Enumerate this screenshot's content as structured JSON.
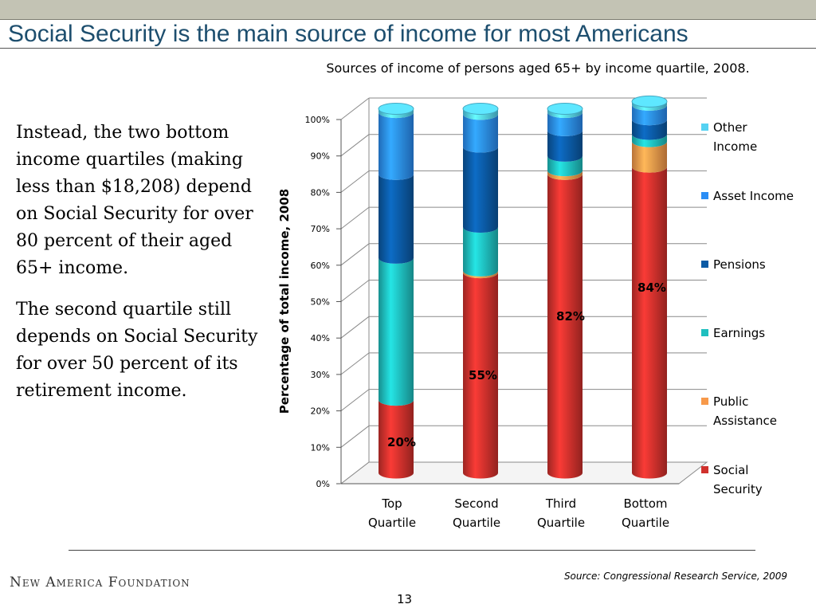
{
  "slide": {
    "title": "Social Security is the main source of income for most Americans",
    "paragraphs": [
      "Instead, the two bottom income quartiles (making less than $18,208) depend on Social Security for over 80 percent of their aged 65+ income.",
      "The second quartile still depends on Social Security for over 50 percent of its retirement income."
    ],
    "org_name": "New America Foundation",
    "source": "Source:  Congressional Research Service,  2009",
    "page_number": "13"
  },
  "chart_data": {
    "type": "bar",
    "stacked": true,
    "title": "Sources of income of persons aged 65+ by income quartile, 2008.",
    "ylabel": "Percentage of total income, 2008",
    "xlabel": "",
    "ylim": [
      0,
      100
    ],
    "yticks": [
      "0%",
      "10%",
      "20%",
      "30%",
      "40%",
      "50%",
      "60%",
      "70%",
      "80%",
      "90%",
      "100%"
    ],
    "categories": [
      "Top Quartile",
      "Second Quartile",
      "Third Quartile",
      "Bottom Quartile"
    ],
    "legend_position": "right",
    "series": [
      {
        "name": "Social Security",
        "color": "#d0312d",
        "values": [
          20,
          55,
          82,
          84
        ]
      },
      {
        "name": "Public Assistance",
        "color": "#f7994a",
        "values": [
          0,
          0.5,
          1,
          7
        ]
      },
      {
        "name": "Earnings",
        "color": "#1fbfbf",
        "values": [
          39,
          12,
          4,
          2
        ]
      },
      {
        "name": "Pensions",
        "color": "#0b5aa5",
        "values": [
          23,
          22,
          7,
          4
        ]
      },
      {
        "name": "Asset Income",
        "color": "#2b8ef5",
        "values": [
          17,
          9,
          5,
          4
        ]
      },
      {
        "name": "Other Income",
        "color": "#55d2f2",
        "values": [
          1,
          1.5,
          1,
          1
        ]
      }
    ],
    "data_labels": [
      "20%",
      "55%",
      "82%",
      "84%"
    ]
  }
}
